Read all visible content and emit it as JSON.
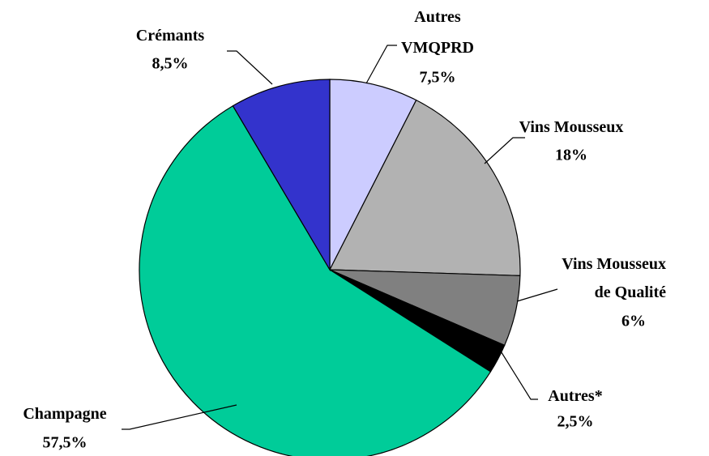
{
  "chart_data": {
    "type": "pie",
    "categories": [
      "Autres\nVMQPRD",
      "Vins Mousseux",
      "Vins Mousseux\nde Qualité",
      "Autres*",
      "Champagne",
      "Crémants"
    ],
    "values": [
      7.5,
      18,
      6,
      2.5,
      57.5,
      8.5
    ],
    "value_labels": [
      "7,5%",
      "18%",
      "6%",
      "2,5%",
      "57,5%",
      "8,5%"
    ],
    "colors": [
      "#ccccff",
      "#b2b2b2",
      "#808080",
      "#000000",
      "#00cc99",
      "#3333cc"
    ]
  }
}
